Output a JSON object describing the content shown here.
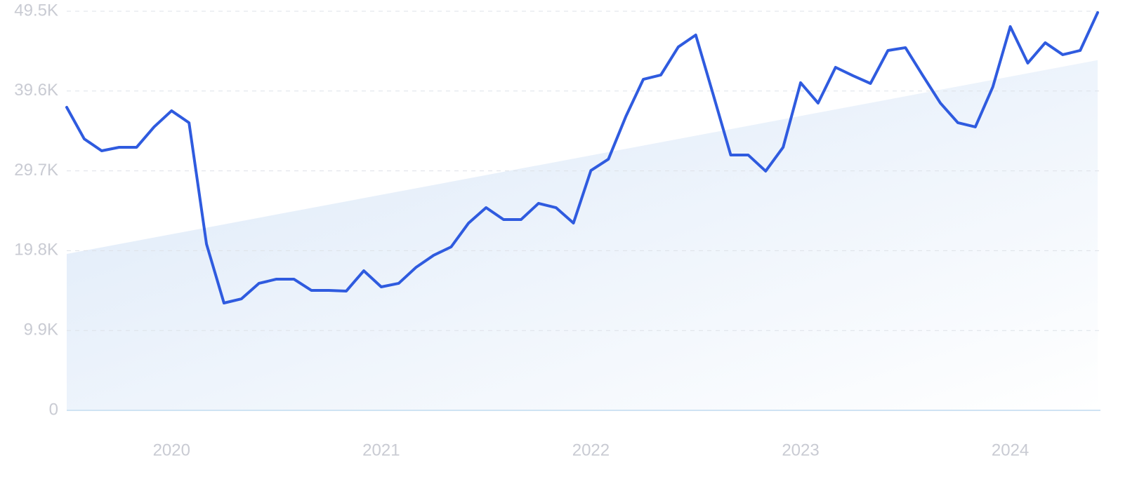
{
  "chart_data": {
    "type": "line",
    "categories": [
      null,
      null,
      null,
      null,
      null,
      null,
      "2020",
      null,
      null,
      null,
      null,
      null,
      null,
      null,
      null,
      null,
      null,
      null,
      "2021",
      null,
      null,
      null,
      null,
      null,
      null,
      null,
      null,
      null,
      null,
      null,
      "2022",
      null,
      null,
      null,
      null,
      null,
      null,
      null,
      null,
      null,
      null,
      null,
      "2023",
      null,
      null,
      null,
      null,
      null,
      null,
      null,
      null,
      null,
      null,
      null,
      "2024",
      null,
      null,
      null,
      null,
      null
    ],
    "series": [
      {
        "color": "#2f5bdf",
        "values": [
          37584,
          33670,
          32190,
          32625,
          32625,
          35150,
          37150,
          35670,
          20620,
          13310,
          13830,
          15750,
          16270,
          16270,
          14880,
          14880,
          14790,
          17310,
          15310,
          15750,
          17750,
          19230,
          20270,
          23230,
          25140,
          23660,
          23660,
          25670,
          25140,
          23230,
          29750,
          31150,
          36450,
          41060,
          41590,
          45070,
          46550,
          39150,
          31670,
          31670,
          29670,
          32630,
          40630,
          38110,
          42540,
          41500,
          40540,
          44630,
          44980,
          41500,
          38110,
          35670,
          35150,
          40110,
          47590,
          43070,
          45590,
          44110,
          44630,
          49330
        ]
      }
    ],
    "trend": [
      19400,
      43430
    ],
    "trend_color": "#dbe8f8",
    "ylim": [
      0,
      49500
    ],
    "yticks": [
      0,
      {
        "value": 9900,
        "label": "9.9K"
      },
      {
        "value": 19800,
        "label": "19.8K"
      },
      {
        "value": 29700,
        "label": "29.7K"
      },
      {
        "value": 39600,
        "label": "39.6K"
      },
      {
        "value": 49500,
        "label": "49.5K"
      }
    ],
    "grid": true
  }
}
